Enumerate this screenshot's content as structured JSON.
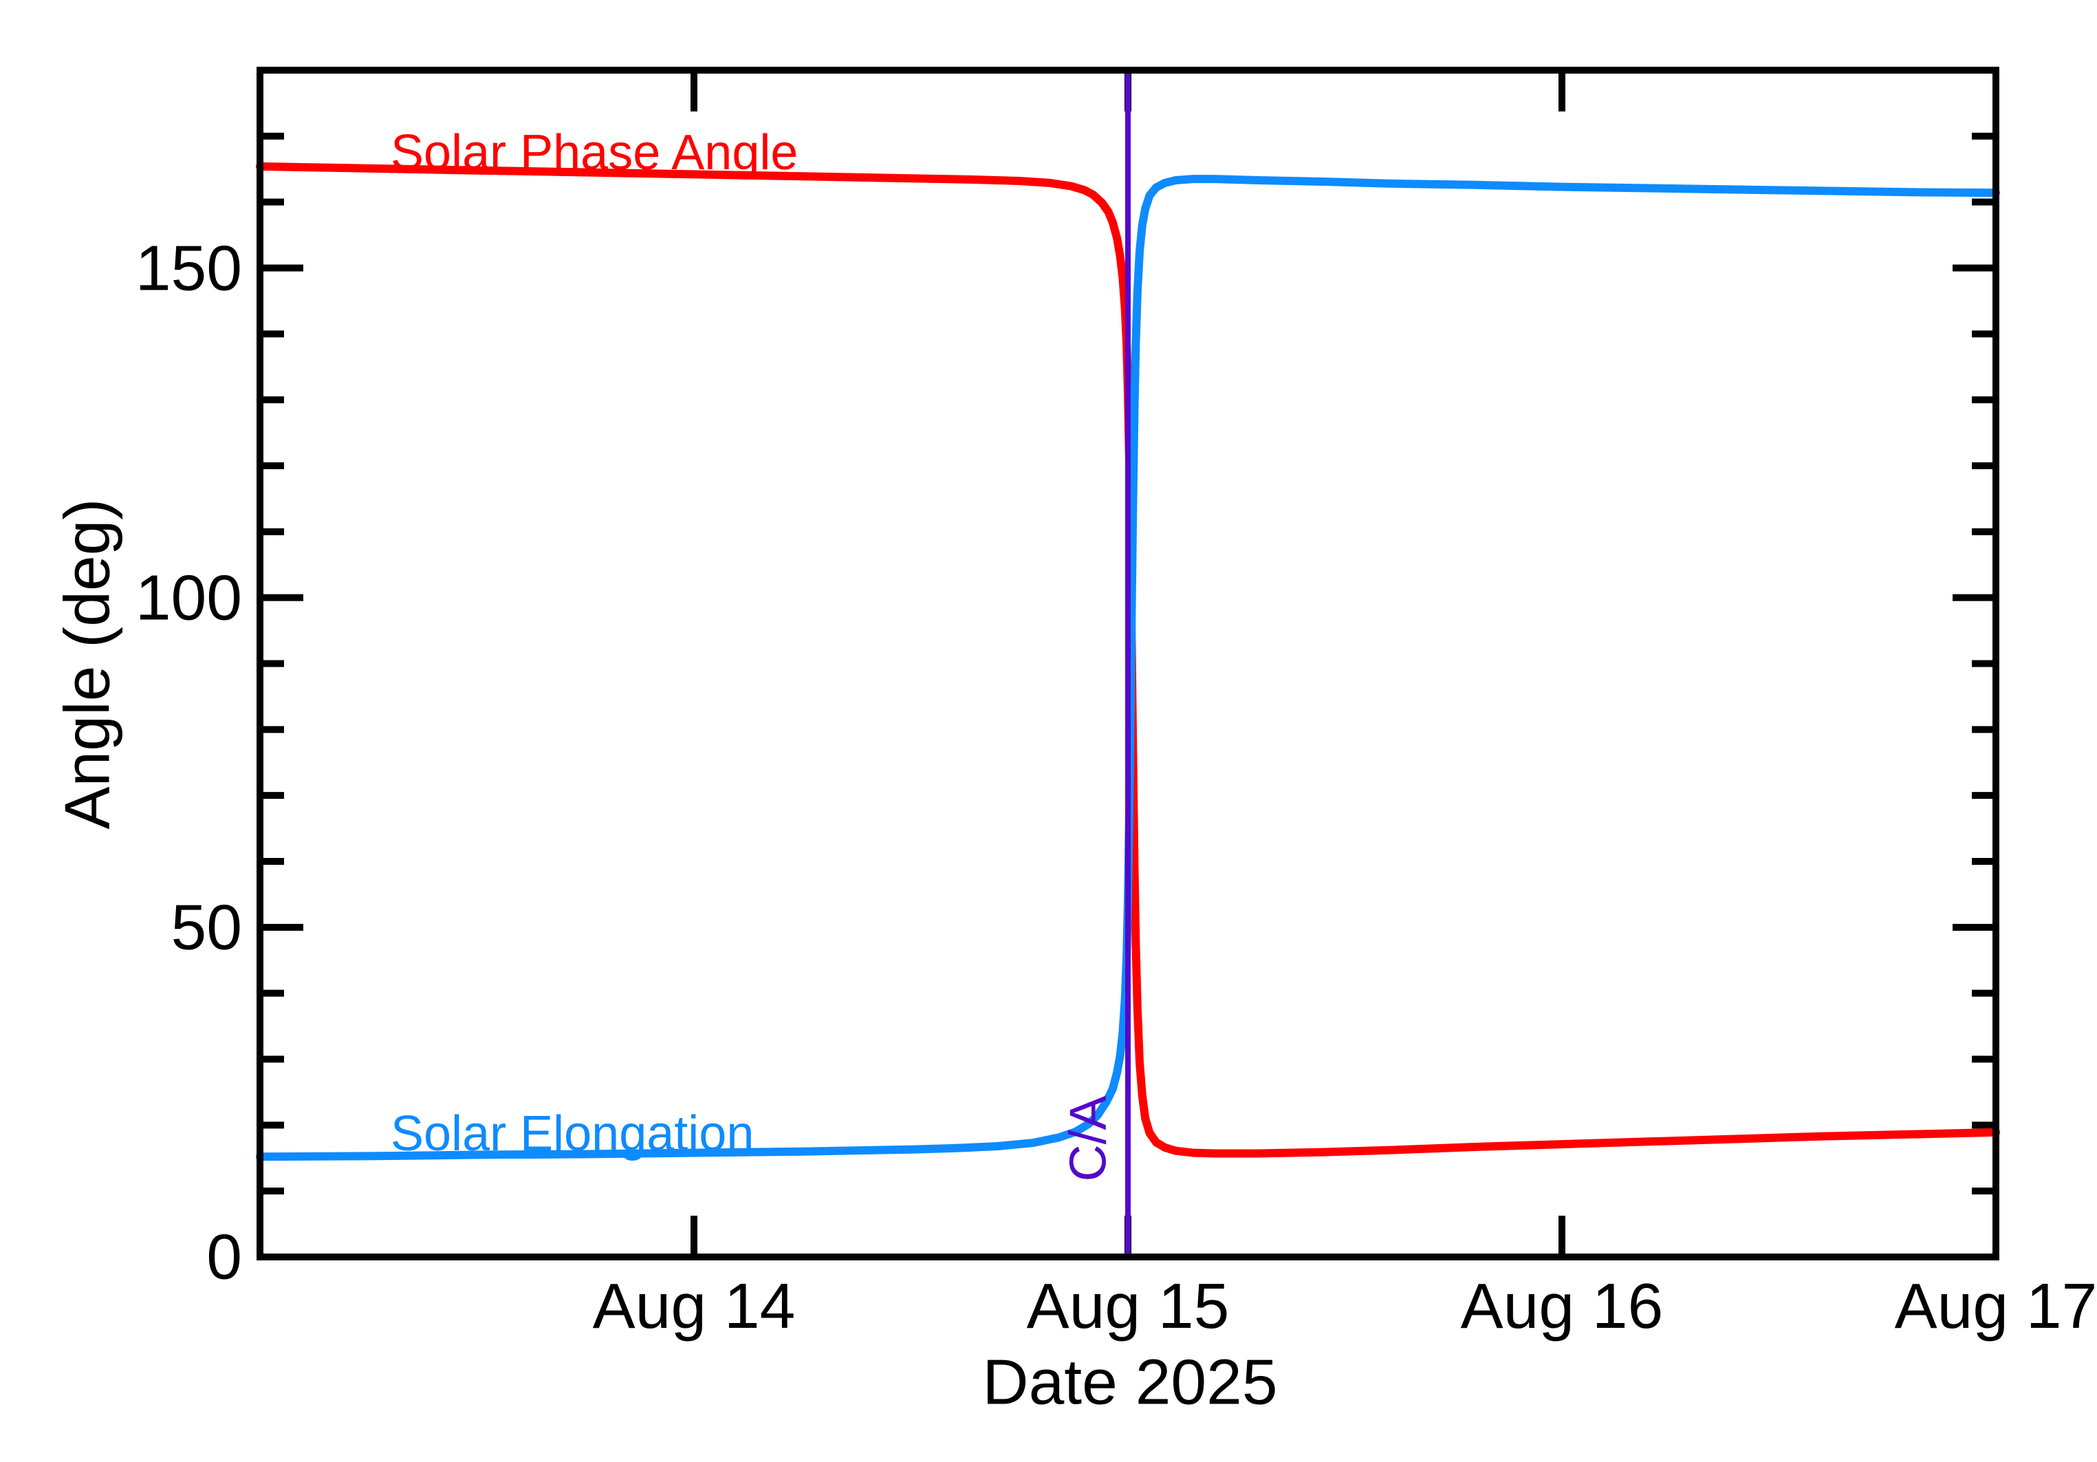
{
  "colors": {
    "phase_angle": "#ff0000",
    "elongation": "#0e8bff",
    "closest_approach": "#5507cb",
    "axis": "#000000",
    "background": "#ffffff"
  },
  "labels": {
    "y_axis_title": "Angle (deg)",
    "x_axis_title": "Date 2025",
    "phase_angle_series": "Solar Phase Angle",
    "elongation_series": "Solar Elongation",
    "closest_approach": "C/A"
  },
  "chart_data": {
    "type": "line",
    "title": "",
    "xlabel": "Date 2025",
    "ylabel": "Angle (deg)",
    "ylim": [
      0,
      180
    ],
    "y_major_ticks": [
      {
        "value": 0,
        "label": "0"
      },
      {
        "value": 50,
        "label": "50"
      },
      {
        "value": 100,
        "label": "100"
      },
      {
        "value": 150,
        "label": "150"
      }
    ],
    "y_minor_step": 10,
    "x_range_days": [
      0,
      4
    ],
    "x_ticks": [
      {
        "day": 1,
        "label": "Aug 14"
      },
      {
        "day": 2,
        "label": "Aug 15"
      },
      {
        "day": 3,
        "label": "Aug 16"
      },
      {
        "day": 4,
        "label": "Aug 17"
      }
    ],
    "grid": false,
    "legend_position": "inline-curve-labels",
    "annotation": {
      "label": "C/A",
      "day": 2.0
    },
    "series": [
      {
        "name": "Solar Phase Angle",
        "color": "#ff0000",
        "points": [
          [
            0.0,
            165.4
          ],
          [
            0.25,
            165.1
          ],
          [
            0.5,
            164.8
          ],
          [
            0.75,
            164.5
          ],
          [
            1.0,
            164.2
          ],
          [
            1.25,
            163.9
          ],
          [
            1.5,
            163.6
          ],
          [
            1.65,
            163.4
          ],
          [
            1.75,
            163.2
          ],
          [
            1.82,
            162.9
          ],
          [
            1.87,
            162.4
          ],
          [
            1.9,
            161.8
          ],
          [
            1.92,
            161.1
          ],
          [
            1.94,
            159.9
          ],
          [
            1.955,
            158.5
          ],
          [
            1.965,
            156.9
          ],
          [
            1.975,
            154.5
          ],
          [
            1.982,
            151.8
          ],
          [
            1.988,
            148.5
          ],
          [
            1.993,
            144.0
          ],
          [
            1.997,
            138.5
          ],
          [
            2.0,
            131.0
          ],
          [
            2.003,
            121.0
          ],
          [
            2.006,
            107.0
          ],
          [
            2.009,
            91.0
          ],
          [
            2.012,
            74.0
          ],
          [
            2.015,
            59.0
          ],
          [
            2.018,
            47.5
          ],
          [
            2.022,
            37.5
          ],
          [
            2.027,
            29.5
          ],
          [
            2.033,
            24.5
          ],
          [
            2.04,
            21.0
          ],
          [
            2.05,
            18.8
          ],
          [
            2.065,
            17.4
          ],
          [
            2.085,
            16.6
          ],
          [
            2.11,
            16.1
          ],
          [
            2.15,
            15.8
          ],
          [
            2.2,
            15.7
          ],
          [
            2.3,
            15.7
          ],
          [
            2.45,
            15.9
          ],
          [
            2.6,
            16.2
          ],
          [
            2.8,
            16.7
          ],
          [
            3.0,
            17.1
          ],
          [
            3.2,
            17.5
          ],
          [
            3.4,
            17.9
          ],
          [
            3.6,
            18.3
          ],
          [
            3.8,
            18.6
          ],
          [
            4.0,
            18.9
          ]
        ]
      },
      {
        "name": "Solar Elongation",
        "color": "#0e8bff",
        "points": [
          [
            0.0,
            15.2
          ],
          [
            0.25,
            15.3
          ],
          [
            0.5,
            15.5
          ],
          [
            0.75,
            15.6
          ],
          [
            1.0,
            15.8
          ],
          [
            1.25,
            16.0
          ],
          [
            1.5,
            16.3
          ],
          [
            1.6,
            16.5
          ],
          [
            1.7,
            16.8
          ],
          [
            1.78,
            17.3
          ],
          [
            1.84,
            18.1
          ],
          [
            1.88,
            19.0
          ],
          [
            1.91,
            20.2
          ],
          [
            1.93,
            21.5
          ],
          [
            1.95,
            23.5
          ],
          [
            1.965,
            25.5
          ],
          [
            1.975,
            28.0
          ],
          [
            1.982,
            30.5
          ],
          [
            1.988,
            34.0
          ],
          [
            1.993,
            39.0
          ],
          [
            1.997,
            45.5
          ],
          [
            2.0,
            54.0
          ],
          [
            2.003,
            67.0
          ],
          [
            2.006,
            83.0
          ],
          [
            2.009,
            100.0
          ],
          [
            2.012,
            116.0
          ],
          [
            2.015,
            129.0
          ],
          [
            2.018,
            138.5
          ],
          [
            2.022,
            146.5
          ],
          [
            2.027,
            152.5
          ],
          [
            2.033,
            156.5
          ],
          [
            2.04,
            159.0
          ],
          [
            2.05,
            161.0
          ],
          [
            2.065,
            162.2
          ],
          [
            2.085,
            162.9
          ],
          [
            2.11,
            163.3
          ],
          [
            2.15,
            163.5
          ],
          [
            2.2,
            163.5
          ],
          [
            2.3,
            163.3
          ],
          [
            2.45,
            163.1
          ],
          [
            2.6,
            162.8
          ],
          [
            2.8,
            162.6
          ],
          [
            3.0,
            162.3
          ],
          [
            3.2,
            162.1
          ],
          [
            3.4,
            161.9
          ],
          [
            3.6,
            161.7
          ],
          [
            3.8,
            161.5
          ],
          [
            4.0,
            161.4
          ]
        ]
      }
    ]
  }
}
